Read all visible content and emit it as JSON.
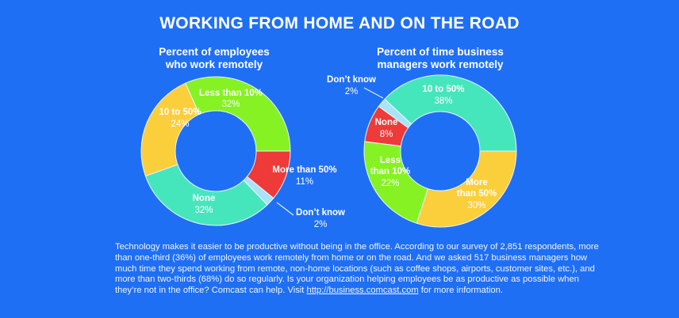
{
  "header": {
    "title": "WORKING FROM HOME AND ON THE ROAD"
  },
  "colors": {
    "background": "#1f6ff5",
    "green": "#86f224",
    "yellow": "#fbce3c",
    "teal": "#46e6bd",
    "red": "#ee3a39",
    "light_blue": "#a8e4f5"
  },
  "chart_data": [
    {
      "type": "pie",
      "variant": "donut",
      "title": "Percent of employees who work remotely",
      "title_lines": [
        "Percent of employees",
        "who work remotely"
      ],
      "categories": [
        "Less than 10%",
        "10 to 50%",
        "None",
        "Don't know",
        "More than 50%"
      ],
      "values": [
        32,
        24,
        32,
        2,
        11
      ],
      "unit": "%",
      "colors": [
        "#86f224",
        "#fbce3c",
        "#46e6bd",
        "#a8e4f5",
        "#ee3a39"
      ],
      "start_angle": "3 o'clock, counterclockwise"
    },
    {
      "type": "pie",
      "variant": "donut",
      "title": "Percent of time business managers work remotely",
      "title_lines": [
        "Percent of time business",
        "managers work remotely"
      ],
      "categories": [
        "10 to 50%",
        "Don't know",
        "None",
        "Less than 10%",
        "More than 50%"
      ],
      "values": [
        38,
        2,
        8,
        22,
        30
      ],
      "unit": "%",
      "colors": [
        "#46e6bd",
        "#a8e4f5",
        "#ee3a39",
        "#86f224",
        "#fbce3c"
      ],
      "start_angle": "3 o'clock, counterclockwise"
    }
  ],
  "labels": {
    "left": {
      "less10": {
        "name": "Less than 10%",
        "value": "32%"
      },
      "ten50": {
        "name": "10 to 50%",
        "value": "24%"
      },
      "none": {
        "name": "None",
        "value": "32%"
      },
      "dontknow": {
        "name": "Don’t know",
        "value": "2%"
      },
      "more50": {
        "name": "More than 50%",
        "value": "11%"
      }
    },
    "right": {
      "ten50": {
        "name": "10 to 50%",
        "value": "38%"
      },
      "dontknow": {
        "name": "Don’t know",
        "value": "2%"
      },
      "none": {
        "name": "None",
        "value": "8%"
      },
      "less10_a": "Less",
      "less10_b": "than 10%",
      "less10_value": "22%",
      "more50_a": "More",
      "more50_b": "than 50%",
      "more50_value": "30%"
    }
  },
  "body": {
    "text": "Technology makes it easier to be productive without being in the office. According to our survey of 2,851 respondents, more than one-third (36%) of employees work remotely from home or on the road. And we asked 517 business managers how much time they spend working from remote, non-home locations (such as coffee shops, airports, customer sites, etc.), and more than two-thirds (68%) do so regularly. Is your organization helping employees be as productive as possible when they’re not in the office? Comcast can help. Visit ",
    "link": "http://business.comcast.com",
    "suffix": " for more information."
  }
}
